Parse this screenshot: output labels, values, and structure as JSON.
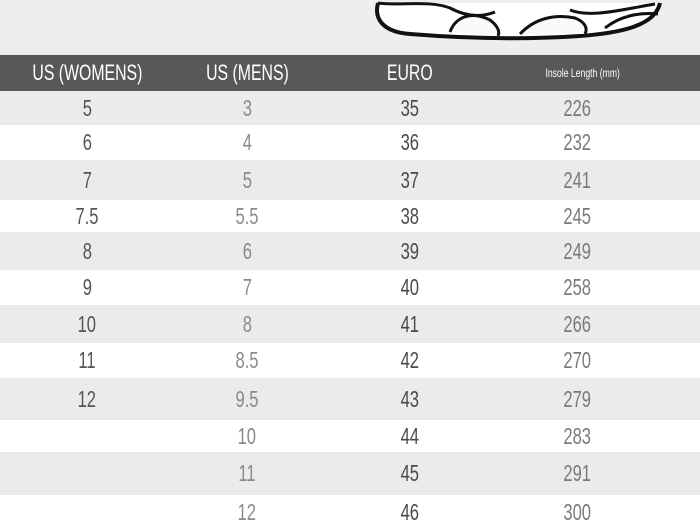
{
  "colors": {
    "header_bg": "#595758",
    "header_text": "#ffffff",
    "row_alt": "#ebebeb",
    "row": "#ffffff"
  },
  "image": {
    "icon": "sneaker-outline-illustration"
  },
  "table": {
    "headers": [
      "US (WOMENS)",
      "US (MENS)",
      "EURO",
      "Insole Length (mm)"
    ],
    "rows": [
      [
        "5",
        "3",
        "35",
        "226"
      ],
      [
        "6",
        "4",
        "36",
        "232"
      ],
      [
        "7",
        "5",
        "37",
        "241"
      ],
      [
        "7.5",
        "5.5",
        "38",
        "245"
      ],
      [
        "8",
        "6",
        "39",
        "249"
      ],
      [
        "9",
        "7",
        "40",
        "258"
      ],
      [
        "10",
        "8",
        "41",
        "266"
      ],
      [
        "11",
        "8.5",
        "42",
        "270"
      ],
      [
        "12",
        "9.5",
        "43",
        "279"
      ],
      [
        "",
        "10",
        "44",
        "283"
      ],
      [
        "",
        "11",
        "45",
        "291"
      ],
      [
        "",
        "12",
        "46",
        "300"
      ]
    ]
  }
}
